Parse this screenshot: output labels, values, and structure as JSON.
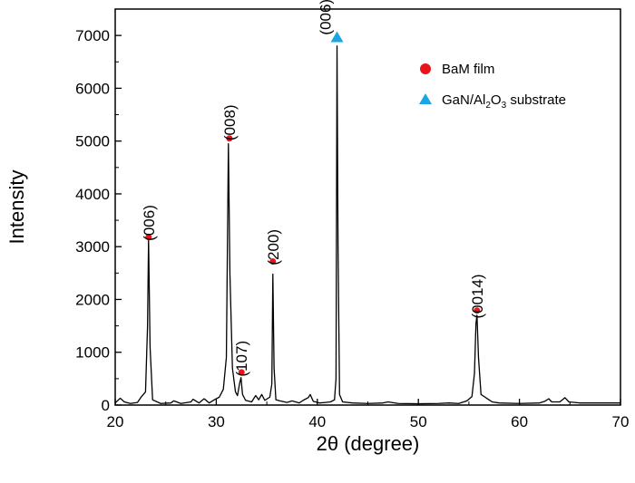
{
  "chart_data": {
    "type": "line",
    "xlabel": "2θ (degree)",
    "ylabel": "Intensity",
    "xlim": [
      20,
      70
    ],
    "ylim": [
      0,
      7500
    ],
    "xticks": [
      20,
      30,
      40,
      50,
      60,
      70
    ],
    "yticks": [
      0,
      1000,
      2000,
      3000,
      4000,
      5000,
      6000,
      7000
    ],
    "legend": {
      "placement": "top-right",
      "entries": [
        {
          "label": "BaM film",
          "marker": "circle",
          "color": "#e8141b"
        },
        {
          "label_parts": [
            "GaN/Al",
            "2",
            "O",
            "3",
            " substrate"
          ],
          "marker": "triangle",
          "color": "#1ba6e2"
        }
      ]
    },
    "line_color": "#000000",
    "baseline": [
      [
        20.0,
        40
      ],
      [
        20.5,
        130
      ],
      [
        20.9,
        60
      ],
      [
        21.5,
        30
      ],
      [
        22.2,
        50
      ],
      [
        22.6,
        160
      ],
      [
        23.0,
        250
      ],
      [
        23.2,
        1500
      ],
      [
        23.3,
        3150
      ],
      [
        23.45,
        1100
      ],
      [
        23.7,
        100
      ],
      [
        24.5,
        30
      ],
      [
        25.5,
        40
      ],
      [
        25.8,
        80
      ],
      [
        26.5,
        30
      ],
      [
        27.5,
        60
      ],
      [
        27.7,
        110
      ],
      [
        28.3,
        40
      ],
      [
        28.8,
        120
      ],
      [
        29.3,
        40
      ],
      [
        29.8,
        100
      ],
      [
        30.3,
        150
      ],
      [
        30.7,
        300
      ],
      [
        31.0,
        900
      ],
      [
        31.2,
        4950
      ],
      [
        31.35,
        2500
      ],
      [
        31.6,
        700
      ],
      [
        31.9,
        250
      ],
      [
        32.1,
        180
      ],
      [
        32.3,
        400
      ],
      [
        32.45,
        520
      ],
      [
        32.6,
        200
      ],
      [
        32.9,
        90
      ],
      [
        33.5,
        60
      ],
      [
        33.9,
        180
      ],
      [
        34.2,
        100
      ],
      [
        34.5,
        200
      ],
      [
        34.8,
        90
      ],
      [
        35.3,
        150
      ],
      [
        35.5,
        400
      ],
      [
        35.6,
        2480
      ],
      [
        35.72,
        700
      ],
      [
        35.9,
        100
      ],
      [
        36.3,
        80
      ],
      [
        37.0,
        50
      ],
      [
        37.5,
        80
      ],
      [
        38.2,
        40
      ],
      [
        38.6,
        90
      ],
      [
        39.1,
        140
      ],
      [
        39.3,
        200
      ],
      [
        39.6,
        70
      ],
      [
        40.2,
        40
      ],
      [
        40.8,
        50
      ],
      [
        41.3,
        60
      ],
      [
        41.7,
        100
      ],
      [
        41.85,
        500
      ],
      [
        41.95,
        6800
      ],
      [
        42.05,
        3000
      ],
      [
        42.2,
        200
      ],
      [
        42.5,
        60
      ],
      [
        43.5,
        40
      ],
      [
        45.0,
        30
      ],
      [
        46.5,
        40
      ],
      [
        47.0,
        60
      ],
      [
        48.0,
        30
      ],
      [
        50.0,
        25
      ],
      [
        52.0,
        30
      ],
      [
        53.0,
        40
      ],
      [
        54.0,
        30
      ],
      [
        54.8,
        80
      ],
      [
        55.3,
        160
      ],
      [
        55.55,
        600
      ],
      [
        55.7,
        1550
      ],
      [
        55.8,
        1700
      ],
      [
        55.95,
        900
      ],
      [
        56.2,
        200
      ],
      [
        56.6,
        150
      ],
      [
        56.9,
        110
      ],
      [
        57.3,
        60
      ],
      [
        58.0,
        40
      ],
      [
        60.0,
        30
      ],
      [
        62.0,
        40
      ],
      [
        62.5,
        70
      ],
      [
        62.9,
        120
      ],
      [
        63.2,
        60
      ],
      [
        64.0,
        60
      ],
      [
        64.5,
        140
      ],
      [
        64.9,
        60
      ],
      [
        66.0,
        40
      ],
      [
        68.0,
        40
      ],
      [
        70.0,
        40
      ]
    ],
    "peaks": [
      {
        "label": "(006)",
        "phase": "film",
        "x": 23.3,
        "y": 3180,
        "label_y": 3450
      },
      {
        "label": "(008)",
        "phase": "film",
        "x": 31.3,
        "y": 5050,
        "label_y": 5350
      },
      {
        "label": "(107)",
        "phase": "film",
        "x": 32.5,
        "y": 620,
        "label_y": 880
      },
      {
        "label": "(200)",
        "phase": "film",
        "x": 35.6,
        "y": 2720,
        "label_y": 2990
      },
      {
        "label": "(006)",
        "phase": "substrate",
        "x": 41.95,
        "y": 6960,
        "label_y": 7350,
        "label_x": 40.8
      },
      {
        "label": "(0014)",
        "phase": "film",
        "x": 55.8,
        "y": 1790,
        "label_y": 2060
      }
    ]
  }
}
